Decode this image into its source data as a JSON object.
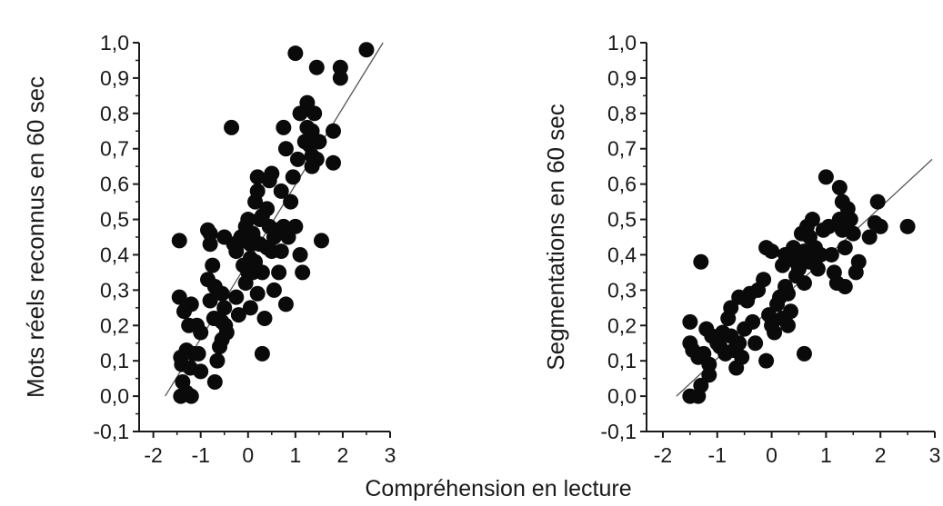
{
  "shared_xlabel": "Compréhension en lecture",
  "colors": {
    "point": "#0a0a0a",
    "fit_line": "#555555",
    "axis": "#1a1a1a"
  },
  "chart_data": [
    {
      "type": "scatter",
      "title": "",
      "xlabel": "",
      "ylabel": "Mots réels reconnus en 60 sec",
      "xlim": [
        -2.3,
        3.0
      ],
      "ylim": [
        -0.1,
        1.0
      ],
      "xticks": [
        -2,
        -1,
        0,
        1,
        2,
        3
      ],
      "xtick_labels": [
        "-2",
        "-1",
        "0",
        "1",
        "2",
        "3"
      ],
      "yticks": [
        -0.1,
        0.0,
        0.1,
        0.2,
        0.3,
        0.4,
        0.5,
        0.6,
        0.7,
        0.8,
        0.9,
        1.0
      ],
      "ytick_labels": [
        "-0,1",
        "0,0",
        "0,1",
        "0,2",
        "0,3",
        "0,4",
        "0,5",
        "0,6",
        "0,7",
        "0,8",
        "0,9",
        "1,0"
      ],
      "grid": false,
      "fit_line": {
        "x": [
          -1.75,
          2.85
        ],
        "y": [
          0.0,
          1.0
        ]
      },
      "points": [
        [
          -1.45,
          0.44
        ],
        [
          -1.45,
          0.28
        ],
        [
          -1.42,
          0.11
        ],
        [
          -1.4,
          0.09
        ],
        [
          -1.38,
          0.04
        ],
        [
          -1.42,
          0.0
        ],
        [
          -1.3,
          0.01
        ],
        [
          -1.2,
          0.0
        ],
        [
          -1.3,
          0.13
        ],
        [
          -1.22,
          0.08
        ],
        [
          -1.15,
          0.12
        ],
        [
          -1.2,
          0.26
        ],
        [
          -1.35,
          0.24
        ],
        [
          -1.25,
          0.2
        ],
        [
          -1.05,
          0.12
        ],
        [
          -1.0,
          0.07
        ],
        [
          -1.08,
          0.2
        ],
        [
          -1.0,
          0.18
        ],
        [
          -0.8,
          0.46
        ],
        [
          -0.8,
          0.43
        ],
        [
          -0.75,
          0.37
        ],
        [
          -0.8,
          0.27
        ],
        [
          -0.72,
          0.22
        ],
        [
          -0.7,
          0.04
        ],
        [
          -0.65,
          0.1
        ],
        [
          -0.6,
          0.14
        ],
        [
          -0.55,
          0.16
        ],
        [
          -0.55,
          0.21
        ],
        [
          -0.5,
          0.25
        ],
        [
          -0.48,
          0.2
        ],
        [
          -0.45,
          0.18
        ],
        [
          -0.55,
          0.29
        ],
        [
          -0.5,
          0.45
        ],
        [
          -0.35,
          0.76
        ],
        [
          -0.3,
          0.43
        ],
        [
          -0.25,
          0.41
        ],
        [
          -0.25,
          0.28
        ],
        [
          -0.2,
          0.23
        ],
        [
          -0.15,
          0.45
        ],
        [
          -0.1,
          0.37
        ],
        [
          -0.05,
          0.32
        ],
        [
          -0.05,
          0.48
        ],
        [
          0.0,
          0.5
        ],
        [
          0.05,
          0.43
        ],
        [
          0.05,
          0.39
        ],
        [
          0.1,
          0.35
        ],
        [
          0.05,
          0.25
        ],
        [
          0.1,
          0.45
        ],
        [
          0.15,
          0.55
        ],
        [
          0.2,
          0.62
        ],
        [
          0.2,
          0.58
        ],
        [
          0.25,
          0.5
        ],
        [
          0.25,
          0.43
        ],
        [
          0.3,
          0.35
        ],
        [
          0.2,
          0.29
        ],
        [
          0.35,
          0.22
        ],
        [
          0.3,
          0.12
        ],
        [
          0.4,
          0.42
        ],
        [
          0.4,
          0.53
        ],
        [
          0.45,
          0.61
        ],
        [
          0.5,
          0.63
        ],
        [
          0.45,
          0.48
        ],
        [
          0.5,
          0.41
        ],
        [
          0.55,
          0.3
        ],
        [
          0.6,
          0.47
        ],
        [
          0.65,
          0.35
        ],
        [
          0.7,
          0.41
        ],
        [
          0.75,
          0.48
        ],
        [
          0.7,
          0.58
        ],
        [
          0.8,
          0.26
        ],
        [
          0.85,
          0.45
        ],
        [
          0.9,
          0.55
        ],
        [
          0.95,
          0.62
        ],
        [
          1.0,
          0.97
        ],
        [
          1.0,
          0.48
        ],
        [
          1.05,
          0.67
        ],
        [
          1.1,
          0.4
        ],
        [
          1.15,
          0.35
        ],
        [
          0.75,
          0.76
        ],
        [
          0.8,
          0.7
        ],
        [
          1.2,
          0.72
        ],
        [
          1.25,
          0.83
        ],
        [
          1.25,
          0.76
        ],
        [
          1.3,
          0.71
        ],
        [
          1.35,
          0.68
        ],
        [
          1.35,
          0.65
        ],
        [
          1.4,
          0.8
        ],
        [
          1.45,
          0.93
        ],
        [
          1.45,
          0.67
        ],
        [
          1.5,
          0.72
        ],
        [
          1.55,
          0.44
        ],
        [
          1.8,
          0.75
        ],
        [
          1.8,
          0.66
        ],
        [
          1.95,
          0.93
        ],
        [
          1.95,
          0.9
        ],
        [
          2.5,
          0.98
        ],
        [
          -0.85,
          0.47
        ],
        [
          -0.7,
          0.31
        ],
        [
          -0.85,
          0.33
        ],
        [
          0.1,
          0.46
        ],
        [
          0.3,
          0.51
        ],
        [
          0.55,
          0.45
        ],
        [
          -0.1,
          0.44
        ],
        [
          0.0,
          0.35
        ],
        [
          0.15,
          0.38
        ],
        [
          1.1,
          0.8
        ],
        [
          1.35,
          0.75
        ]
      ]
    },
    {
      "type": "scatter",
      "title": "",
      "xlabel": "",
      "ylabel": "Segmentations en 60 sec",
      "xlim": [
        -2.3,
        3.0
      ],
      "ylim": [
        -0.1,
        1.0
      ],
      "xticks": [
        -2,
        -1,
        0,
        1,
        2,
        3
      ],
      "xtick_labels": [
        "-2",
        "-1",
        "0",
        "1",
        "2",
        "3"
      ],
      "yticks": [
        -0.1,
        0.0,
        0.1,
        0.2,
        0.3,
        0.4,
        0.5,
        0.6,
        0.7,
        0.8,
        0.9,
        1.0
      ],
      "ytick_labels": [
        "-0,1",
        "0,0",
        "0,1",
        "0,2",
        "0,3",
        "0,4",
        "0,5",
        "0,6",
        "0,7",
        "0,8",
        "0,9",
        "1,0"
      ],
      "grid": false,
      "fit_line": {
        "x": [
          -1.75,
          2.95
        ],
        "y": [
          0.0,
          0.67
        ]
      },
      "points": [
        [
          -1.5,
          0.21
        ],
        [
          -1.5,
          0.15
        ],
        [
          -1.45,
          0.13
        ],
        [
          -1.5,
          0.0
        ],
        [
          -1.35,
          0.0
        ],
        [
          -1.3,
          0.38
        ],
        [
          -1.3,
          0.03
        ],
        [
          -1.25,
          0.12
        ],
        [
          -1.2,
          0.19
        ],
        [
          -1.15,
          0.09
        ],
        [
          -1.1,
          0.17
        ],
        [
          -1.0,
          0.15
        ],
        [
          -0.95,
          0.14
        ],
        [
          -0.9,
          0.18
        ],
        [
          -0.85,
          0.12
        ],
        [
          -0.8,
          0.22
        ],
        [
          -0.75,
          0.25
        ],
        [
          -0.75,
          0.17
        ],
        [
          -0.7,
          0.13
        ],
        [
          -0.65,
          0.08
        ],
        [
          -0.6,
          0.15
        ],
        [
          -0.55,
          0.11
        ],
        [
          -0.5,
          0.19
        ],
        [
          -0.45,
          0.27
        ],
        [
          -0.4,
          0.29
        ],
        [
          -0.35,
          0.21
        ],
        [
          -0.3,
          0.15
        ],
        [
          -0.25,
          0.3
        ],
        [
          -0.15,
          0.33
        ],
        [
          -0.1,
          0.42
        ],
        [
          -0.1,
          0.1
        ],
        [
          -0.05,
          0.23
        ],
        [
          0.0,
          0.41
        ],
        [
          0.0,
          0.2
        ],
        [
          0.05,
          0.18
        ],
        [
          0.1,
          0.26
        ],
        [
          0.15,
          0.28
        ],
        [
          0.2,
          0.37
        ],
        [
          0.2,
          0.22
        ],
        [
          0.25,
          0.4
        ],
        [
          0.3,
          0.29
        ],
        [
          0.3,
          0.2
        ],
        [
          0.35,
          0.24
        ],
        [
          0.4,
          0.42
        ],
        [
          0.45,
          0.38
        ],
        [
          0.5,
          0.36
        ],
        [
          0.55,
          0.46
        ],
        [
          0.6,
          0.41
        ],
        [
          0.6,
          0.12
        ],
        [
          0.65,
          0.48
        ],
        [
          0.7,
          0.45
        ],
        [
          0.7,
          0.38
        ],
        [
          0.75,
          0.5
        ],
        [
          0.8,
          0.42
        ],
        [
          0.85,
          0.36
        ],
        [
          0.9,
          0.4
        ],
        [
          0.95,
          0.47
        ],
        [
          1.0,
          0.62
        ],
        [
          1.05,
          0.48
        ],
        [
          1.1,
          0.4
        ],
        [
          1.15,
          0.35
        ],
        [
          1.2,
          0.32
        ],
        [
          1.25,
          0.59
        ],
        [
          1.25,
          0.5
        ],
        [
          1.3,
          0.55
        ],
        [
          1.3,
          0.47
        ],
        [
          1.35,
          0.42
        ],
        [
          1.4,
          0.53
        ],
        [
          1.45,
          0.5
        ],
        [
          1.5,
          0.46
        ],
        [
          1.55,
          0.35
        ],
        [
          1.6,
          0.38
        ],
        [
          1.9,
          0.49
        ],
        [
          1.95,
          0.55
        ],
        [
          2.0,
          0.48
        ],
        [
          2.5,
          0.48
        ],
        [
          1.8,
          0.45
        ],
        [
          -0.6,
          0.28
        ],
        [
          -1.35,
          0.11
        ],
        [
          -1.15,
          0.06
        ],
        [
          0.25,
          0.31
        ],
        [
          0.6,
          0.32
        ],
        [
          0.45,
          0.34
        ],
        [
          1.35,
          0.31
        ]
      ]
    }
  ]
}
